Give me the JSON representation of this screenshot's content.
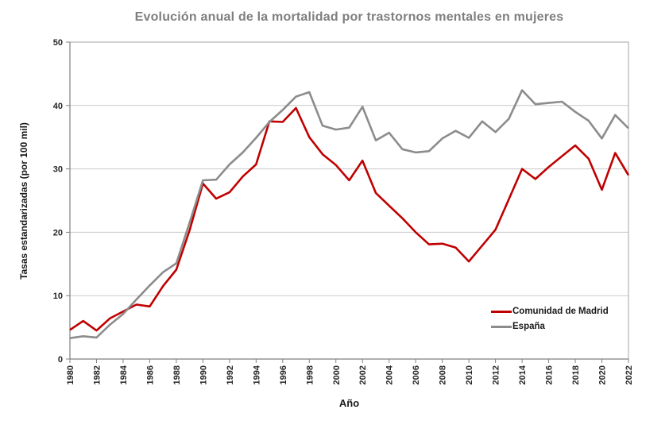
{
  "title": "Evolución anual de la mortalidad por trastornos mentales en mujeres",
  "colors": {
    "title_text": "#7f7f7f",
    "axis_text": "#262626",
    "gridline": "#c9c9c9",
    "plot_border": "#a6a6a6",
    "axis_line": "#808080",
    "background": "#ffffff",
    "madrid_line": "#c00000",
    "espana_line": "#8c8c8c"
  },
  "chart_data": {
    "type": "line",
    "title": "Evolución anual de la mortalidad por trastornos mentales en mujeres",
    "xlabel": "Año",
    "ylabel": "Tasas estandarizadas (por 100 mil)",
    "ylim": [
      0,
      50
    ],
    "y_ticks": [
      0,
      10,
      20,
      30,
      40,
      50
    ],
    "x_tick_years": [
      1980,
      1982,
      1984,
      1986,
      1988,
      1990,
      1992,
      1994,
      1996,
      1998,
      2000,
      2002,
      2004,
      2006,
      2008,
      2010,
      2012,
      2014,
      2016,
      2018,
      2020,
      2022
    ],
    "grid": "horizontal",
    "legend_position": "inside-bottom-right",
    "years": [
      1980,
      1981,
      1982,
      1983,
      1984,
      1985,
      1986,
      1987,
      1988,
      1989,
      1990,
      1991,
      1992,
      1993,
      1994,
      1995,
      1996,
      1997,
      1998,
      1999,
      2000,
      2001,
      2002,
      2003,
      2004,
      2005,
      2006,
      2007,
      2008,
      2009,
      2010,
      2011,
      2012,
      2013,
      2014,
      2015,
      2016,
      2017,
      2018,
      2019,
      2020,
      2021,
      2022
    ],
    "series": [
      {
        "name": "Comunidad de Madrid",
        "color": "#c00000",
        "values": [
          4.6,
          6.0,
          4.5,
          6.4,
          7.5,
          8.6,
          8.3,
          11.5,
          14.1,
          20.3,
          27.7,
          25.3,
          26.3,
          28.8,
          30.7,
          37.5,
          37.4,
          39.6,
          35.0,
          32.3,
          30.6,
          28.2,
          31.3,
          26.2,
          24.2,
          22.2,
          20.0,
          18.1,
          18.2,
          17.6,
          15.4,
          17.9,
          20.4,
          25.2,
          30.0,
          28.4,
          30.3,
          32.0,
          33.7,
          31.6,
          26.7,
          32.5,
          29.0
        ]
      },
      {
        "name": "España",
        "color": "#8c8c8c",
        "values": [
          3.3,
          3.6,
          3.4,
          5.4,
          7.1,
          9.4,
          11.6,
          13.7,
          15.1,
          21.5,
          28.2,
          28.3,
          30.7,
          32.6,
          34.9,
          37.4,
          39.3,
          41.4,
          42.1,
          36.8,
          36.2,
          36.5,
          39.8,
          34.5,
          35.7,
          33.1,
          32.6,
          32.8,
          34.8,
          36.0,
          34.9,
          37.5,
          35.8,
          37.9,
          42.4,
          40.2,
          40.4,
          40.6,
          39.0,
          37.6,
          34.8,
          38.5,
          36.4
        ]
      }
    ]
  }
}
